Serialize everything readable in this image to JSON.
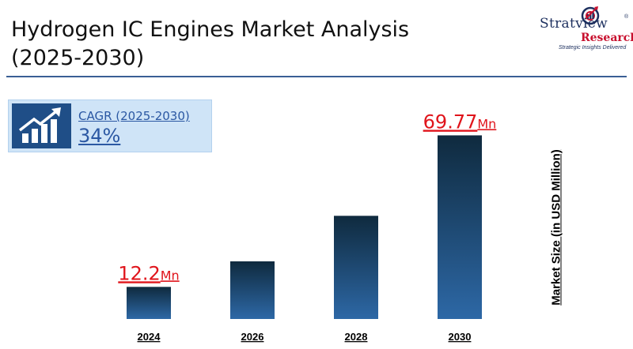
{
  "title": {
    "line1": "Hydrogen IC Engines Market Analysis",
    "line2": "(2025-2030)"
  },
  "logo": {
    "brand": "Stratview",
    "registered": "®",
    "research": "Research",
    "tagline": "Strategic Insights Delivered"
  },
  "cagr": {
    "label": "CAGR (2025-2030)",
    "value": "34%",
    "icon": "growth-chart-icon"
  },
  "colors": {
    "bar_top": "#0f2a3e",
    "bar_bottom": "#2d68a6",
    "value_label": "#e0141b",
    "rule": "#3a5f95",
    "cagr_box": "#cfe4f7"
  },
  "chart_data": {
    "type": "bar",
    "categories": [
      "2024",
      "2026",
      "2028",
      "2030"
    ],
    "values": [
      12.2,
      21.9,
      39.2,
      69.77
    ],
    "data_labels": [
      {
        "index": 0,
        "number": "12.2",
        "unit": "Mn"
      },
      {
        "index": 3,
        "number": "69.77",
        "unit": "Mn"
      }
    ],
    "xlabel": "",
    "ylabel": "Market Size (in USD Million)",
    "ylim": [
      0,
      75
    ],
    "grid": false
  }
}
